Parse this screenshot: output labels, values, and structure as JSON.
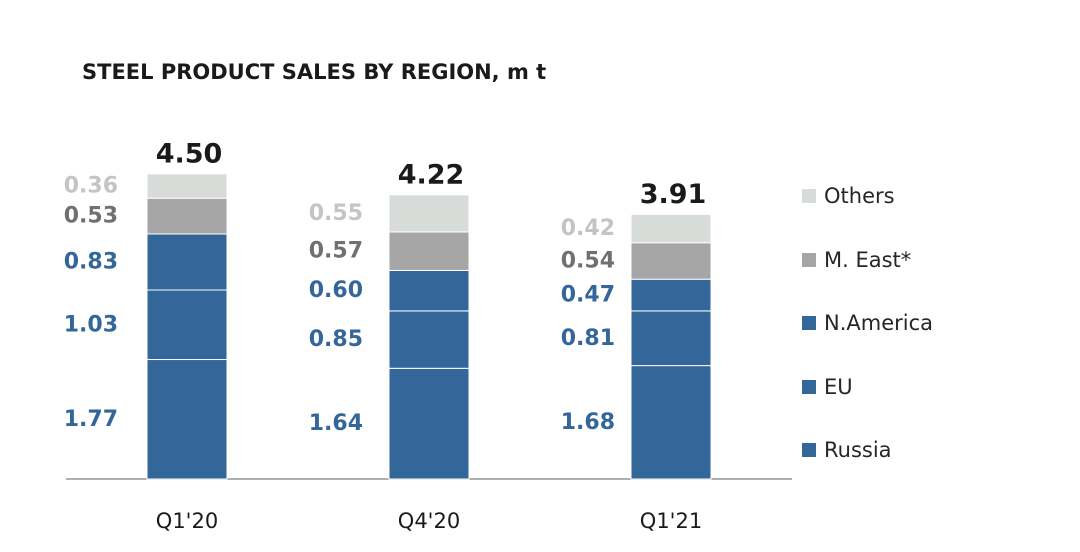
{
  "chart_data": {
    "type": "bar",
    "stacked": true,
    "title": "STEEL PRODUCT SALES BY REGION, m t",
    "categories": [
      "Q1'20",
      "Q4'20",
      "Q1'21"
    ],
    "totals": [
      "4.50",
      "4.22",
      "3.91"
    ],
    "series": [
      {
        "name": "Russia",
        "values": [
          1.77,
          1.64,
          1.68
        ],
        "labels": [
          "1.77",
          "1.64",
          "1.68"
        ],
        "color": "#336699",
        "label_color": "#336699"
      },
      {
        "name": "EU",
        "values": [
          1.03,
          0.85,
          0.81
        ],
        "labels": [
          "1.03",
          "0.85",
          "0.81"
        ],
        "color": "#336699",
        "label_color": "#336699"
      },
      {
        "name": "N.America",
        "values": [
          0.83,
          0.6,
          0.47
        ],
        "labels": [
          "0.83",
          "0.60",
          "0.47"
        ],
        "color": "#336699",
        "label_color": "#336699"
      },
      {
        "name": "M. East*",
        "values": [
          0.53,
          0.57,
          0.54
        ],
        "labels": [
          "0.53",
          "0.57",
          "0.54"
        ],
        "color": "#a6a6a6",
        "label_color": "#707070"
      },
      {
        "name": "Others",
        "values": [
          0.36,
          0.55,
          0.42
        ],
        "labels": [
          "0.36",
          "0.55",
          "0.42"
        ],
        "color": "#d8dcd9",
        "label_color": "#c4c4c4"
      }
    ],
    "legend_position": "right",
    "grid": false
  }
}
